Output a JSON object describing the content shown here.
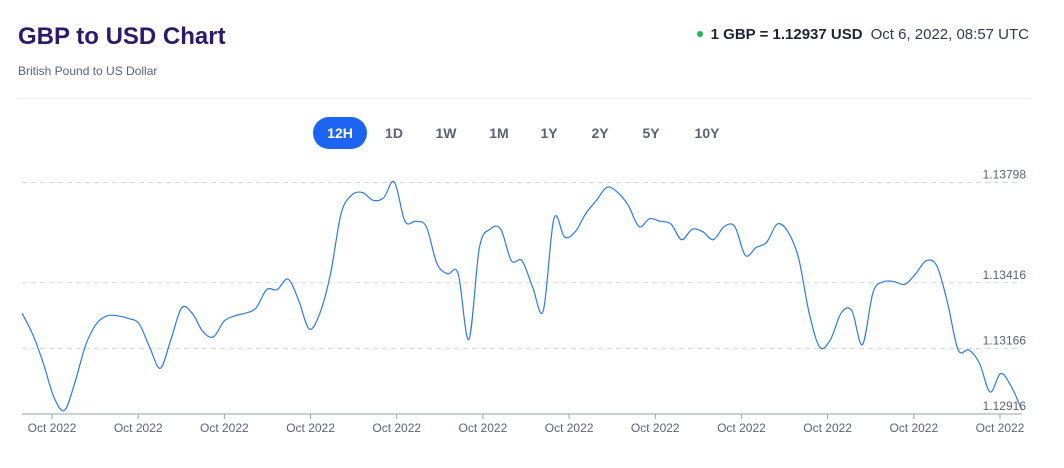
{
  "header": {
    "title": "GBP to USD Chart",
    "subtitle": "British Pound to US Dollar",
    "rate_text": "1 GBP = 1.12937 USD",
    "timestamp": "Oct 6, 2022, 08:57 UTC",
    "status_color": "#1db954"
  },
  "tabs": [
    {
      "label": "12H",
      "active": true
    },
    {
      "label": "1D",
      "active": false
    },
    {
      "label": "1W",
      "active": false
    },
    {
      "label": "1M",
      "active": false
    },
    {
      "label": "1Y",
      "active": false
    },
    {
      "label": "2Y",
      "active": false
    },
    {
      "label": "5Y",
      "active": false
    },
    {
      "label": "10Y",
      "active": false
    }
  ],
  "chart_data": {
    "type": "line",
    "title": "",
    "xlabel": "",
    "ylabel": "",
    "line_color": "#2f7bd8",
    "ylim": [
      1.12916,
      1.13838
    ],
    "y_ticks": [
      1.13798,
      1.13416,
      1.13166,
      1.12916
    ],
    "x_tick_labels": [
      "Oct 2022",
      "Oct 2022",
      "Oct 2022",
      "Oct 2022",
      "Oct 2022",
      "Oct 2022",
      "Oct 2022",
      "Oct 2022",
      "Oct 2022",
      "Oct 2022",
      "Oct 2022",
      "Oct 2022"
    ],
    "grid": "horizontal-dashed",
    "series": [
      {
        "values": [
          1.133,
          1.1322,
          1.1311,
          1.1298,
          1.1293,
          1.1304,
          1.1318,
          1.1326,
          1.1329,
          1.1329,
          1.1328,
          1.1326,
          1.1317,
          1.1309,
          1.132,
          1.1332,
          1.133,
          1.1323,
          1.1321,
          1.1327,
          1.1329,
          1.133,
          1.1332,
          1.1339,
          1.1339,
          1.1343,
          1.1335,
          1.1324,
          1.133,
          1.1345,
          1.1368,
          1.1375,
          1.1376,
          1.1373,
          1.1374,
          1.138,
          1.1365,
          1.1365,
          1.1363,
          1.1349,
          1.1345,
          1.1345,
          1.132,
          1.1355,
          1.1362,
          1.1362,
          1.135,
          1.135,
          1.134,
          1.1331,
          1.1366,
          1.1359,
          1.1361,
          1.1368,
          1.1373,
          1.1378,
          1.1376,
          1.1371,
          1.1363,
          1.1366,
          1.1365,
          1.1364,
          1.1358,
          1.1362,
          1.1361,
          1.1358,
          1.1363,
          1.1363,
          1.1352,
          1.1355,
          1.1357,
          1.1364,
          1.1361,
          1.1351,
          1.133,
          1.1317,
          1.132,
          1.133,
          1.1331,
          1.1318,
          1.1338,
          1.1342,
          1.1342,
          1.1341,
          1.1345,
          1.135,
          1.1348,
          1.1334,
          1.1316,
          1.1316,
          1.1311,
          1.13,
          1.1307,
          1.1302,
          1.1293
        ]
      }
    ]
  }
}
